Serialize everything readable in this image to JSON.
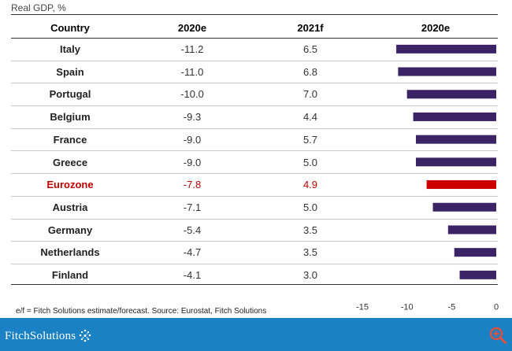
{
  "subtitle": "Real GDP, %",
  "headers": {
    "country": "Country",
    "c2020": "2020e",
    "c2021": "2021f",
    "chart": "2020e"
  },
  "rows": [
    {
      "country": "Italy",
      "v2020": "-11.2",
      "v2021": "6.5"
    },
    {
      "country": "Spain",
      "v2020": "-11.0",
      "v2021": "6.8"
    },
    {
      "country": "Portugal",
      "v2020": "-10.0",
      "v2021": "7.0"
    },
    {
      "country": "Belgium",
      "v2020": "-9.3",
      "v2021": "4.4"
    },
    {
      "country": "France",
      "v2020": "-9.0",
      "v2021": "5.7"
    },
    {
      "country": "Greece",
      "v2020": "-9.0",
      "v2021": "5.0"
    },
    {
      "country": "Eurozone",
      "v2020": "-7.8",
      "v2021": "4.9",
      "highlight": true
    },
    {
      "country": "Austria",
      "v2020": "-7.1",
      "v2021": "5.0"
    },
    {
      "country": "Germany",
      "v2020": "-5.4",
      "v2021": "3.5"
    },
    {
      "country": "Netherlands",
      "v2020": "-4.7",
      "v2021": "3.5"
    },
    {
      "country": "Finland",
      "v2020": "-4.1",
      "v2021": "3.0"
    }
  ],
  "chart_data": {
    "type": "bar",
    "orientation": "horizontal",
    "title": "2020e",
    "categories": [
      "Italy",
      "Spain",
      "Portugal",
      "Belgium",
      "France",
      "Greece",
      "Eurozone",
      "Austria",
      "Germany",
      "Netherlands",
      "Finland"
    ],
    "values": [
      -11.2,
      -11.0,
      -10.0,
      -9.3,
      -9.0,
      -9.0,
      -7.8,
      -7.1,
      -5.4,
      -4.7,
      -4.1
    ],
    "highlight_category": "Eurozone",
    "colors": {
      "bar": "#3b2466",
      "highlight": "#cc0000"
    },
    "xlim": [
      -15,
      0
    ],
    "xticks": [
      -15,
      -10,
      -5,
      0
    ],
    "xtick_labels": [
      "-15",
      "-10",
      "-5",
      "0"
    ],
    "xlabel": "",
    "ylabel": ""
  },
  "footnote": "e/f = Fitch Solutions estimate/forecast. Source: Eurostat, Fitch Solutions",
  "footer": {
    "logo_text": "FitchSolutions",
    "background": "#1a82c4",
    "zoom_icon_color": "#e0503a"
  }
}
